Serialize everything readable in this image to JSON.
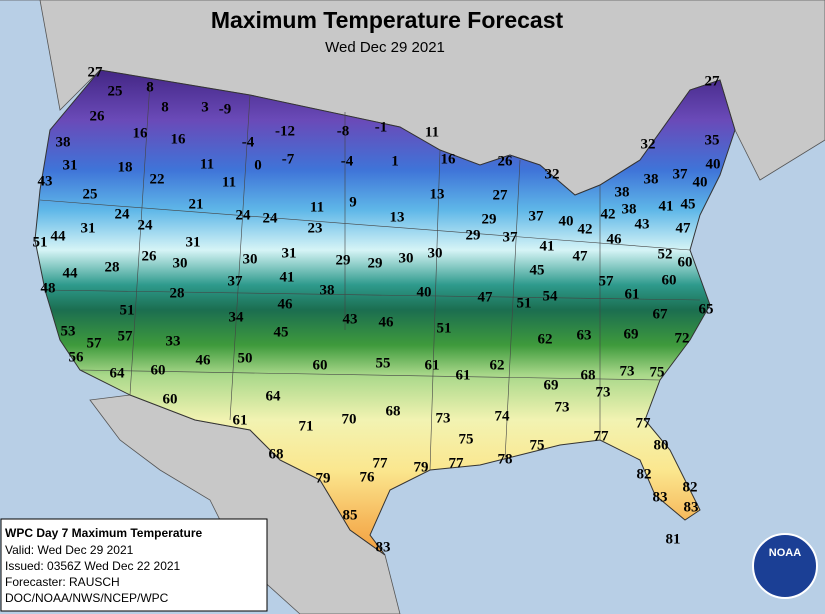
{
  "header": {
    "title": "Maximum Temperature Forecast",
    "subtitle": "Wed Dec 29 2021"
  },
  "info_box": {
    "title": "WPC Day 7 Maximum Temperature",
    "lines": [
      "Valid: Wed Dec 29 2021",
      "Issued: 0356Z Wed Dec 22 2021",
      "Forecaster: RAUSCH",
      "DOC/NOAA/NWS/NCEP/WPC"
    ]
  },
  "logo": "NOAA",
  "temperatures": [
    27,
    25,
    8,
    8,
    3,
    -9,
    38,
    26,
    16,
    16,
    -4,
    -12,
    -8,
    -1,
    11,
    31,
    18,
    11,
    0,
    -7,
    -4,
    1,
    16,
    26,
    43,
    22,
    11,
    32,
    25,
    21,
    11,
    9,
    13,
    27,
    24,
    24,
    24,
    24,
    23,
    13,
    29,
    37,
    40,
    42,
    42,
    38,
    43,
    41,
    45,
    38,
    38,
    37,
    40,
    40,
    32,
    35,
    27,
    51,
    44,
    31,
    31,
    29,
    37,
    41,
    46,
    47,
    28,
    26,
    30,
    30,
    31,
    29,
    29,
    30,
    30,
    47,
    52,
    60,
    44,
    48,
    37,
    41,
    45,
    57,
    60,
    28,
    46,
    38,
    40,
    47,
    51,
    54,
    61,
    51,
    34,
    43,
    46,
    67,
    65,
    53,
    57,
    45,
    51,
    62,
    63,
    69,
    72,
    57,
    33,
    56,
    46,
    50,
    60,
    55,
    61,
    62,
    64,
    60,
    61,
    69,
    68,
    73,
    75,
    73,
    60,
    64,
    73,
    61,
    71,
    70,
    68,
    73,
    74,
    77,
    75,
    75,
    77,
    80,
    68,
    77,
    79,
    77,
    78,
    79,
    76,
    82,
    82,
    83,
    83,
    85,
    83,
    81
  ]
}
